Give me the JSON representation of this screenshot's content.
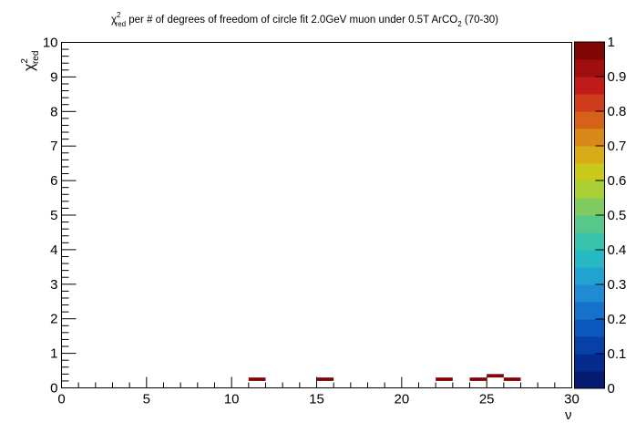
{
  "chart_data": {
    "type": "heatmap",
    "title": {
      "chi": "χ",
      "sup": "2",
      "sub": "red",
      "mid": " per # of degrees of freedom of circle fit 2.0GeV muon under 0.5T ArCO",
      "sub2": "2",
      "tail": " (70-30)"
    },
    "xlabel": "ν",
    "ylabel": {
      "chi": "χ",
      "sup": "2",
      "sub": "red"
    },
    "xlim": [
      0,
      30
    ],
    "ylim": [
      0,
      10
    ],
    "xticks": [
      "0",
      "5",
      "10",
      "15",
      "20",
      "25",
      "30"
    ],
    "yticks": [
      "0",
      "1",
      "2",
      "3",
      "4",
      "5",
      "6",
      "7",
      "8",
      "9",
      "10"
    ],
    "colorbar": {
      "range": [
        0,
        1
      ],
      "ticks": [
        "0",
        "0.1",
        "0.2",
        "0.3",
        "0.4",
        "0.5",
        "0.6",
        "0.7",
        "0.8",
        "0.9",
        "1"
      ],
      "colors": [
        "#061b72",
        "#062b8f",
        "#0740a6",
        "#0c58bd",
        "#1571cb",
        "#1e8bd3",
        "#21a3d0",
        "#27b9c3",
        "#38c3ac",
        "#58c88a",
        "#7fcb5f",
        "#a9cf35",
        "#c8c91b",
        "#d7ac16",
        "#d98917",
        "#d6621a",
        "#cf3c1b",
        "#c01a1a",
        "#a00e0e",
        "#800606"
      ]
    },
    "cells": [
      {
        "x0": 11,
        "x1": 12,
        "y0": 0.2,
        "y1": 0.3,
        "value": 1
      },
      {
        "x0": 15,
        "x1": 16,
        "y0": 0.2,
        "y1": 0.3,
        "value": 1
      },
      {
        "x0": 22,
        "x1": 23,
        "y0": 0.2,
        "y1": 0.3,
        "value": 1
      },
      {
        "x0": 24,
        "x1": 25,
        "y0": 0.2,
        "y1": 0.3,
        "value": 1
      },
      {
        "x0": 25,
        "x1": 26,
        "y0": 0.3,
        "y1": 0.4,
        "value": 1
      },
      {
        "x0": 26,
        "x1": 27,
        "y0": 0.2,
        "y1": 0.3,
        "value": 1
      }
    ]
  }
}
